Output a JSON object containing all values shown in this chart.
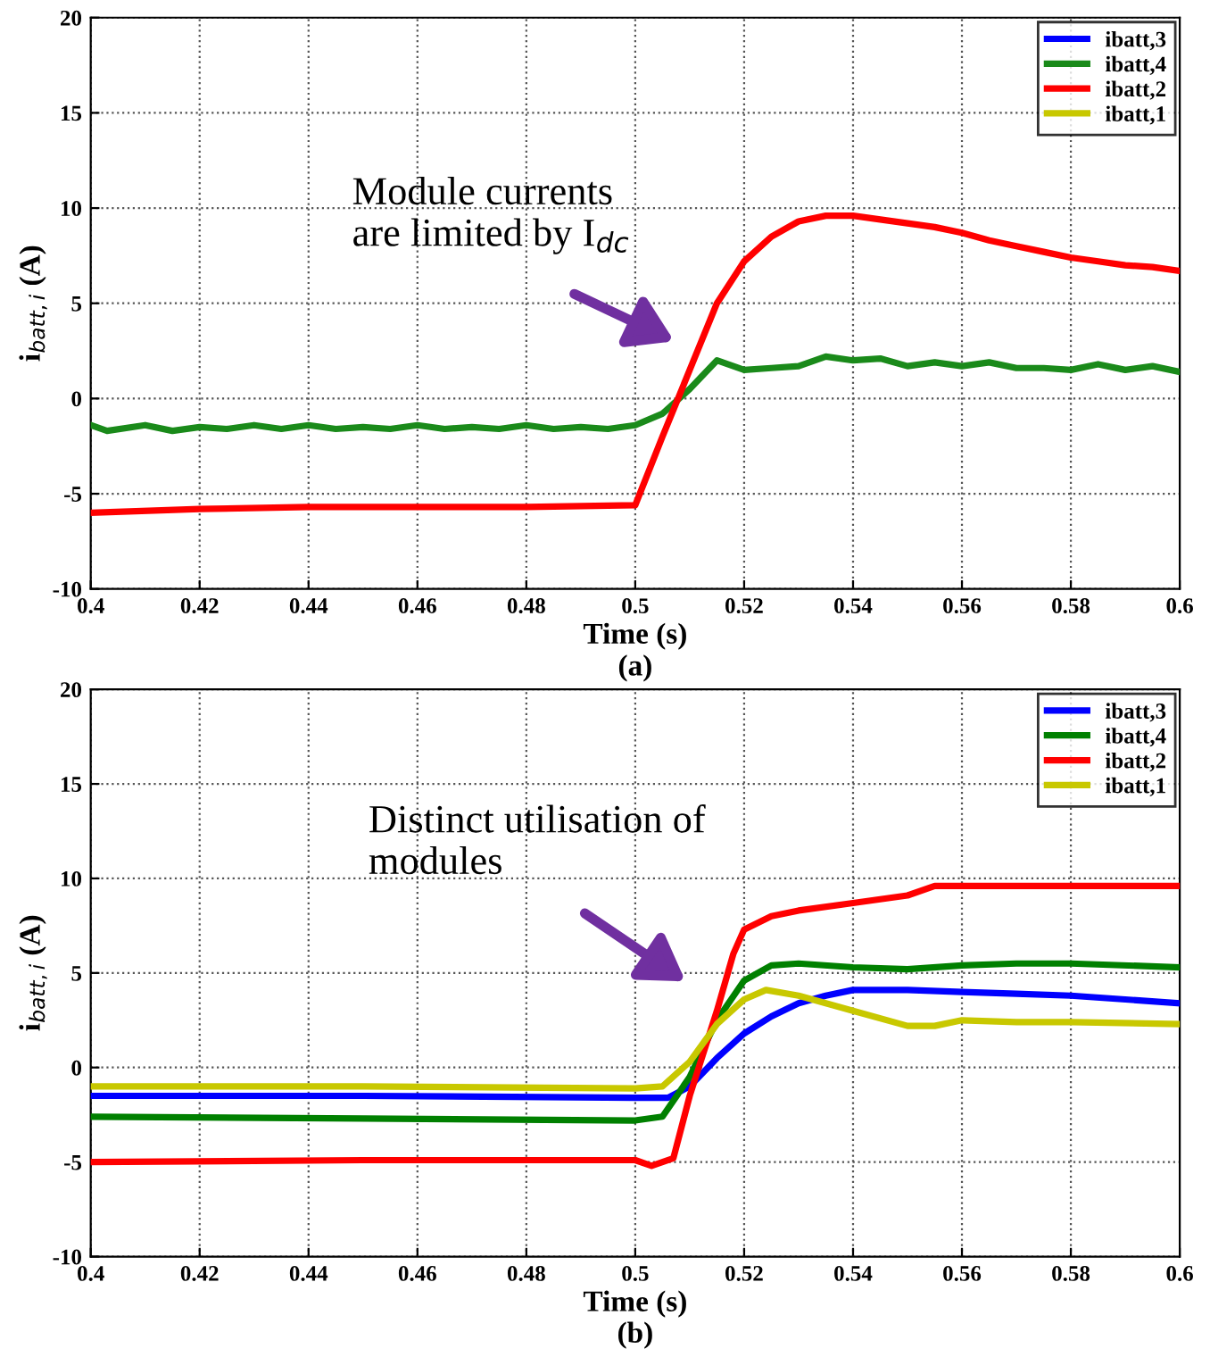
{
  "chart_data": [
    {
      "type": "line",
      "xlabel": "Time (s)",
      "ylabel": "i$_{batt,i}$ (A)",
      "xlim": [
        0.4,
        0.6
      ],
      "ylim": [
        -10,
        20
      ],
      "xticks": [
        0.4,
        0.42,
        0.44,
        0.46,
        0.48,
        0.5,
        0.52,
        0.54,
        0.56,
        0.58,
        0.6
      ],
      "yticks": [
        -10,
        -5,
        0,
        5,
        10,
        15,
        20
      ],
      "grid": true,
      "legend": "top right",
      "annotations": [
        "Module currents\nare limited by I$_{dc}$",
        "(a)"
      ],
      "series": [
        {
          "name": "ibatt,3",
          "color": "#0000ff"
        },
        {
          "name": "ibatt,4",
          "color": "#1a8a1a",
          "x": [
            0.4,
            0.403,
            0.41,
            0.415,
            0.42,
            0.425,
            0.43,
            0.435,
            0.44,
            0.445,
            0.45,
            0.455,
            0.46,
            0.465,
            0.47,
            0.475,
            0.48,
            0.485,
            0.49,
            0.495,
            0.5,
            0.505,
            0.51,
            0.515,
            0.52,
            0.525,
            0.53,
            0.535,
            0.54,
            0.545,
            0.55,
            0.555,
            0.56,
            0.565,
            0.57,
            0.575,
            0.58,
            0.585,
            0.59,
            0.595,
            0.6
          ],
          "values": [
            -1.4,
            -1.7,
            -1.4,
            -1.7,
            -1.5,
            -1.6,
            -1.4,
            -1.6,
            -1.4,
            -1.6,
            -1.5,
            -1.6,
            -1.4,
            -1.6,
            -1.5,
            -1.6,
            -1.4,
            -1.6,
            -1.5,
            -1.6,
            -1.4,
            -0.8,
            0.5,
            2.0,
            1.5,
            1.6,
            1.7,
            2.2,
            2.0,
            2.1,
            1.7,
            1.9,
            1.7,
            1.9,
            1.6,
            1.6,
            1.5,
            1.8,
            1.5,
            1.7,
            1.4
          ]
        },
        {
          "name": "ibatt,2",
          "color": "#ff0000",
          "x": [
            0.4,
            0.42,
            0.44,
            0.46,
            0.48,
            0.5,
            0.505,
            0.51,
            0.515,
            0.52,
            0.525,
            0.53,
            0.535,
            0.54,
            0.545,
            0.55,
            0.555,
            0.56,
            0.565,
            0.57,
            0.575,
            0.58,
            0.585,
            0.59,
            0.595,
            0.6
          ],
          "values": [
            -6.0,
            -5.8,
            -5.7,
            -5.7,
            -5.7,
            -5.6,
            -2.0,
            1.5,
            5.0,
            7.2,
            8.5,
            9.3,
            9.6,
            9.6,
            9.4,
            9.2,
            9.0,
            8.7,
            8.3,
            8.0,
            7.7,
            7.4,
            7.2,
            7.0,
            6.9,
            6.7
          ]
        },
        {
          "name": "ibatt,1",
          "color": "#c8c800"
        }
      ]
    },
    {
      "type": "line",
      "xlabel": "Time (s)",
      "ylabel": "i$_{batt,i}$ (A)",
      "xlim": [
        0.4,
        0.6
      ],
      "ylim": [
        -10,
        20
      ],
      "xticks": [
        0.4,
        0.42,
        0.44,
        0.46,
        0.48,
        0.5,
        0.52,
        0.54,
        0.56,
        0.58,
        0.6
      ],
      "yticks": [
        -10,
        -5,
        0,
        5,
        10,
        15,
        20
      ],
      "grid": true,
      "legend": "top right",
      "annotations": [
        "Distinct utilisation of\nmodules",
        "(b)"
      ],
      "series": [
        {
          "name": "ibatt,3",
          "color": "#0000ff",
          "x": [
            0.4,
            0.45,
            0.5,
            0.506,
            0.51,
            0.515,
            0.52,
            0.525,
            0.53,
            0.535,
            0.54,
            0.55,
            0.56,
            0.57,
            0.58,
            0.6
          ],
          "values": [
            -1.5,
            -1.5,
            -1.6,
            -1.6,
            -1.0,
            0.5,
            1.8,
            2.7,
            3.4,
            3.8,
            4.1,
            4.1,
            4.0,
            3.9,
            3.8,
            3.4
          ]
        },
        {
          "name": "ibatt,4",
          "color": "#008000",
          "x": [
            0.4,
            0.45,
            0.5,
            0.505,
            0.51,
            0.515,
            0.52,
            0.525,
            0.53,
            0.54,
            0.55,
            0.56,
            0.57,
            0.58,
            0.6
          ],
          "values": [
            -2.6,
            -2.7,
            -2.8,
            -2.6,
            -0.5,
            2.5,
            4.6,
            5.4,
            5.5,
            5.3,
            5.2,
            5.4,
            5.5,
            5.5,
            5.3
          ]
        },
        {
          "name": "ibatt,2",
          "color": "#ff0000",
          "x": [
            0.4,
            0.45,
            0.5,
            0.503,
            0.507,
            0.51,
            0.515,
            0.518,
            0.52,
            0.525,
            0.53,
            0.54,
            0.55,
            0.555,
            0.6
          ],
          "values": [
            -5.0,
            -4.9,
            -4.9,
            -5.2,
            -4.8,
            -1.5,
            3.0,
            6.0,
            7.3,
            8.0,
            8.3,
            8.7,
            9.1,
            9.6,
            9.6
          ]
        },
        {
          "name": "ibatt,1",
          "color": "#c8c800",
          "x": [
            0.4,
            0.45,
            0.5,
            0.505,
            0.51,
            0.515,
            0.52,
            0.524,
            0.53,
            0.54,
            0.55,
            0.555,
            0.56,
            0.57,
            0.58,
            0.6
          ],
          "values": [
            -1.0,
            -1.0,
            -1.1,
            -1.0,
            0.3,
            2.3,
            3.6,
            4.1,
            3.8,
            3.0,
            2.2,
            2.2,
            2.5,
            2.4,
            2.4,
            2.3
          ]
        }
      ]
    }
  ]
}
